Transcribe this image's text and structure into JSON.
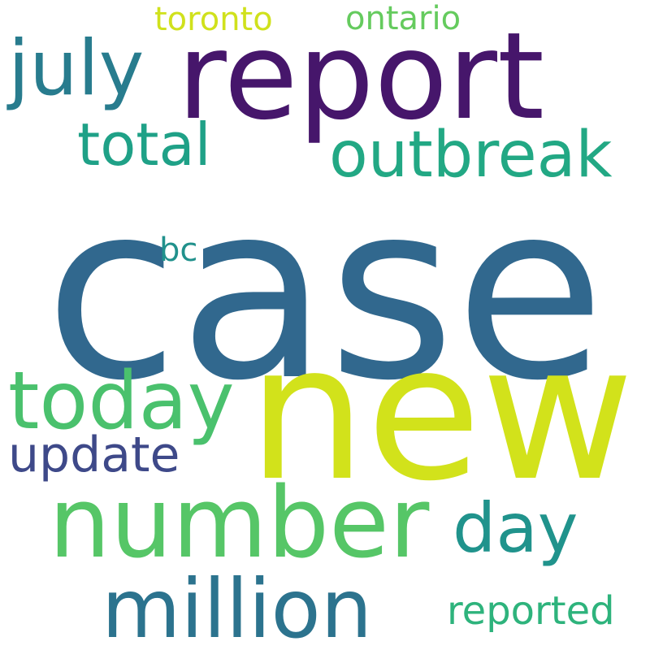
{
  "background": "#ffffff",
  "words": {
    "case": {
      "text": "case",
      "color": "#31688e"
    },
    "new": {
      "text": "new",
      "color": "#d2e21b"
    },
    "report": {
      "text": "report",
      "color": "#46166b"
    },
    "number": {
      "text": "number",
      "color": "#56c667"
    },
    "million": {
      "text": "million",
      "color": "#2c738e"
    },
    "today": {
      "text": "today",
      "color": "#4ac16d"
    },
    "july": {
      "text": "july",
      "color": "#287c8e"
    },
    "outbreak": {
      "text": "outbreak",
      "color": "#22a884"
    },
    "day": {
      "text": "day",
      "color": "#20938c"
    },
    "total": {
      "text": "total",
      "color": "#1fa187"
    },
    "update": {
      "text": "update",
      "color": "#3e4989"
    },
    "reported": {
      "text": "reported",
      "color": "#2eb37c"
    },
    "toronto": {
      "text": "toronto",
      "color": "#d0e11c"
    },
    "ontario": {
      "text": "ontario",
      "color": "#65cb5e"
    },
    "bc": {
      "text": "bc",
      "color": "#21918c"
    }
  }
}
